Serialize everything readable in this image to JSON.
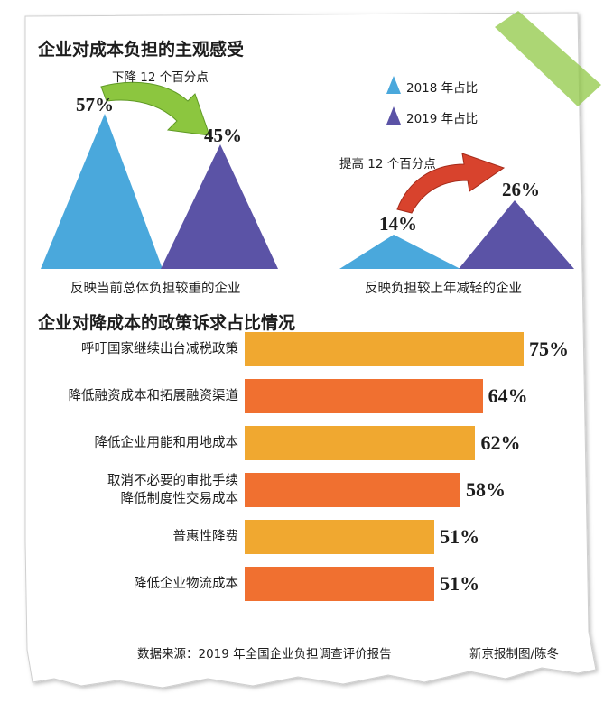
{
  "chart_data": [
    {
      "type": "triangle-comparison",
      "title": "企业对成本负担的主观感受",
      "legend": [
        {
          "name": "2018 年占比",
          "color": "#4aa8dc"
        },
        {
          "name": "2019 年占比",
          "color": "#5b53a6"
        }
      ],
      "groups": [
        {
          "label": "反映当前总体负担较重的企业",
          "values": [
            57,
            45
          ],
          "value_labels": [
            "57%",
            "45%"
          ],
          "change_note": "下降 12 个百分点",
          "arrow_color": "#8cc63f"
        },
        {
          "label": "反映负担较上年减轻的企业",
          "values": [
            14,
            26
          ],
          "value_labels": [
            "14%",
            "26%"
          ],
          "change_note": "提高 12 个百分点",
          "arrow_color": "#d8432d"
        }
      ]
    },
    {
      "type": "bar",
      "orientation": "horizontal",
      "title": "企业对降成本的政策诉求占比情况",
      "categories": [
        "呼吁国家继续出台减税政策",
        "降低融资成本和拓展融资渠道",
        "降低企业用能和用地成本",
        "取消不必要的审批手续\n降低制度性交易成本",
        "普惠性降费",
        "降低企业物流成本"
      ],
      "values": [
        75,
        64,
        62,
        58,
        51,
        51
      ],
      "value_labels": [
        "75%",
        "64%",
        "62%",
        "58%",
        "51%",
        "51%"
      ],
      "colors": [
        "#f0a830",
        "#f07030",
        "#f0a830",
        "#f07030",
        "#f0a830",
        "#f07030"
      ]
    }
  ],
  "footer": {
    "source": "数据来源：2019 年全国企业负担调查评价报告",
    "credit": "新京报制图/陈冬"
  }
}
